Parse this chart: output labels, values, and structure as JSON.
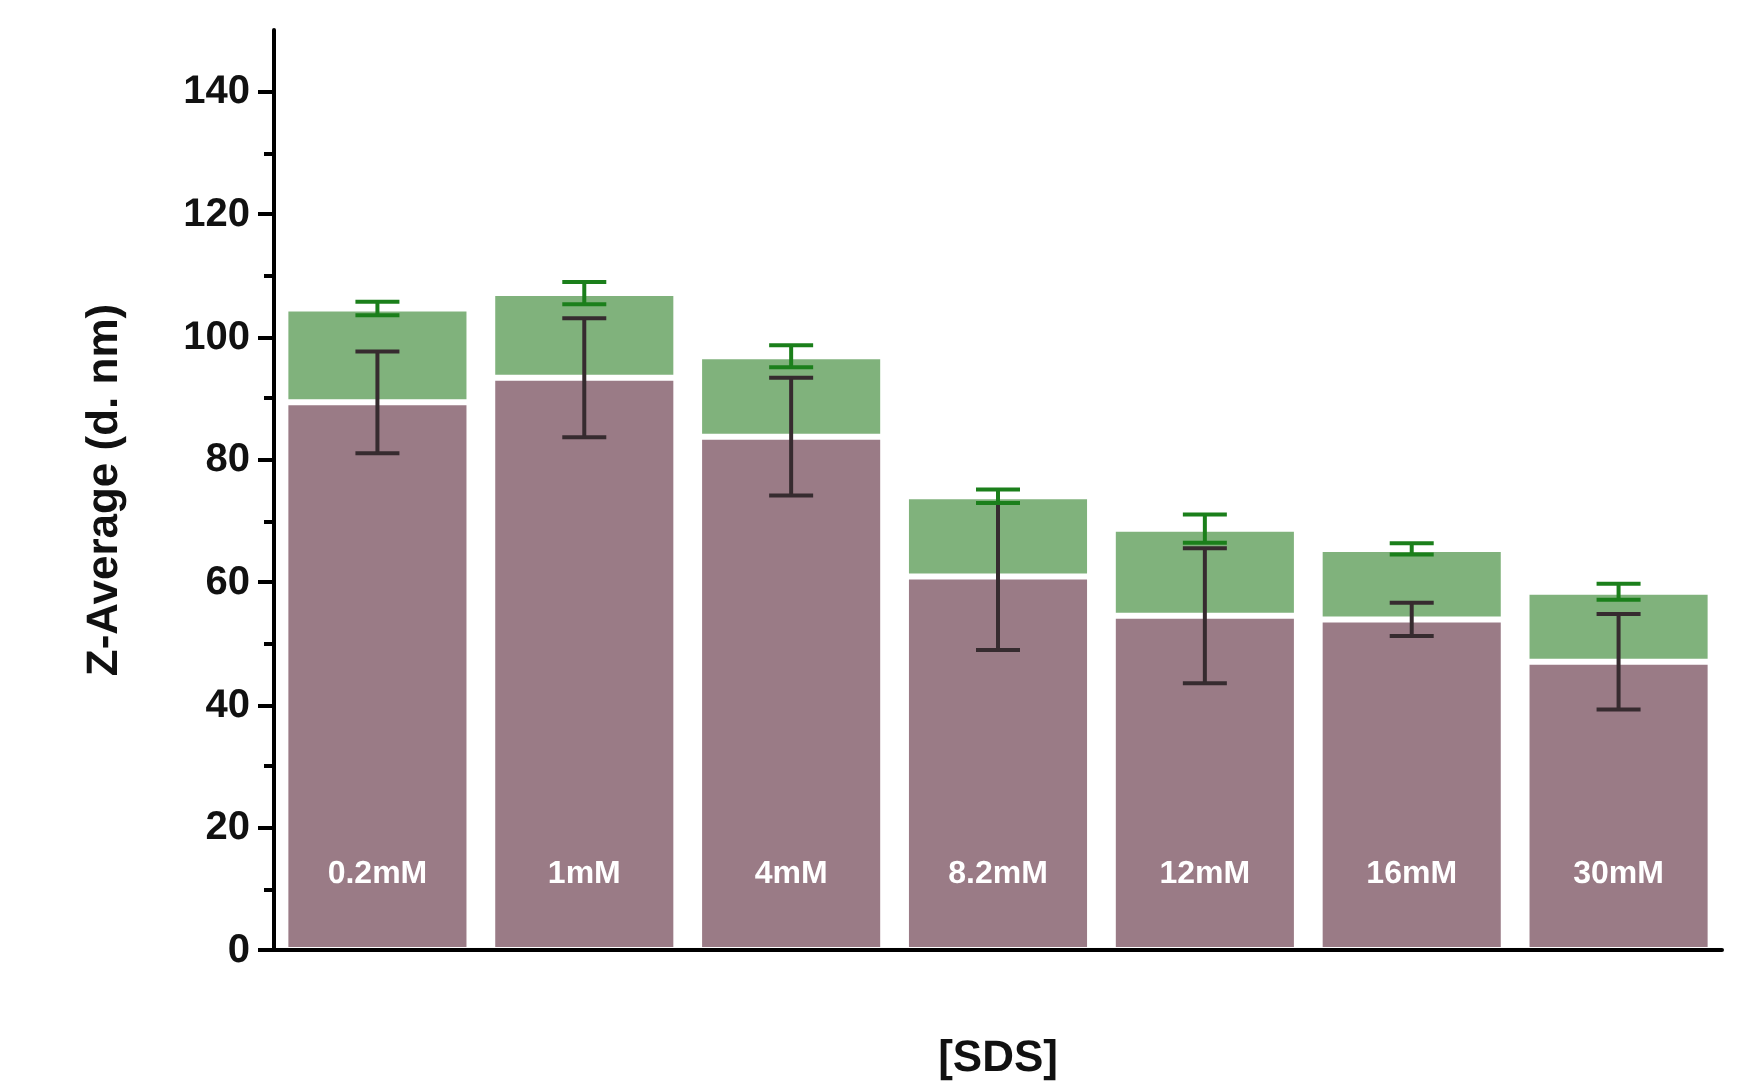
{
  "chart_data": {
    "type": "bar",
    "stacked": true,
    "xlabel": "[SDS]",
    "ylabel": "Z-Average (d. nm)",
    "categories": [
      "0.2mM",
      "1mM",
      "4mM",
      "8.2mM",
      "12mM",
      "16mM",
      "30mM"
    ],
    "series": [
      {
        "color": "#9a7b86",
        "values": [
          89.3,
          93.3,
          83.7,
          60.9,
          54.5,
          53.9,
          47.0
        ],
        "errors": [
          8.3,
          9.7,
          9.6,
          12.0,
          11.0,
          2.7,
          7.8
        ]
      },
      {
        "color": "#80b27c",
        "values": [
          15.3,
          13.8,
          13.1,
          13.1,
          14.2,
          11.5,
          11.4
        ],
        "errors": [
          1.1,
          1.8,
          1.8,
          1.1,
          2.3,
          0.9,
          1.3
        ]
      }
    ],
    "ylim": [
      0,
      150
    ],
    "yticks": [
      0,
      20,
      40,
      60,
      80,
      100,
      120,
      140
    ],
    "grid": false
  }
}
